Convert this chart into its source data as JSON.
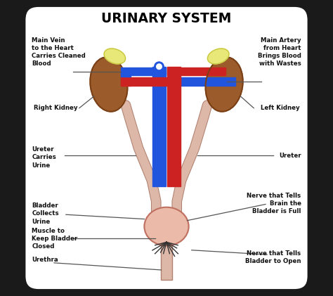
{
  "title": "URINARY SYSTEM",
  "bg_color": "#ffffff",
  "border_color": "#1a1a1a",
  "kidney_color": "#9B5B2A",
  "kidney_edge": "#7a3f15",
  "adrenal_color": "#E8E878",
  "adrenal_edge": "#c8c840",
  "vessel_blue": "#2255DD",
  "vessel_red": "#CC2222",
  "ureter_color": "#DDB8A8",
  "ureter_edge": "#b08070",
  "bladder_color": "#EBBAA8",
  "bladder_edge": "#c07060",
  "line_color": "#444444",
  "label_color": "#111111",
  "labels": {
    "main_vein": "Main Vein\nto the Heart\nCarries Cleaned\nBlood",
    "main_artery": "Main Artery\nfrom Heart\nBrings Blood\nwith Wastes",
    "right_kidney": "Right Kidney",
    "left_kidney": "Left Kidney",
    "ureter_left": "Ureter\nCarries\nUrine",
    "ureter_right": "Ureter",
    "nerve_full": "Nerve that Tells\nBrain the\nBladder is Full",
    "bladder": "Bladder\nCollects\nUrine",
    "muscle": "Muscle to\nKeep Bladder\nClosed",
    "urethra": "Urethra",
    "nerve_open": "Nerve that Tells\nBladder to Open"
  }
}
